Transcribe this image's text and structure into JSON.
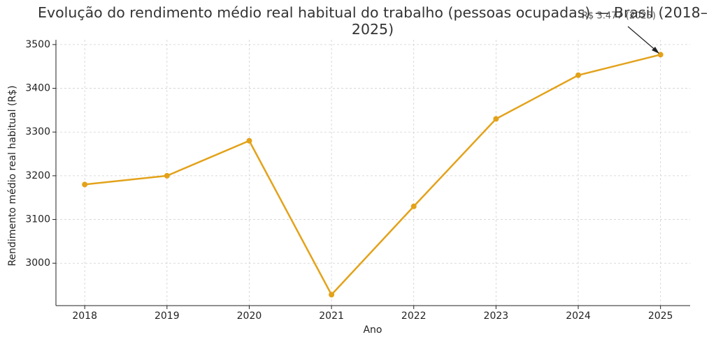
{
  "chart_data": {
    "type": "line",
    "title": "Evolução do rendimento médio real habitual do trabalho (pessoas ocupadas) — Brasil (2018–2025)",
    "x_label": "Ano",
    "y_label": "Rendimento médio real habitual (R$)",
    "x": [
      2018,
      2019,
      2020,
      2021,
      2022,
      2023,
      2024,
      2025
    ],
    "series": [
      {
        "name": "Rendimento médio real habitual",
        "color": "#e3a21a",
        "values": [
          3180,
          3200,
          3280,
          2928,
          3130,
          3330,
          3430,
          3477
        ]
      }
    ],
    "xlim": [
      2017.65,
      2025.36
    ],
    "xticks": [
      2018,
      2019,
      2020,
      2021,
      2022,
      2023,
      2024,
      2025
    ],
    "ylim": [
      2903,
      3511
    ],
    "yticks": [
      3000,
      3100,
      3200,
      3300,
      3400,
      3500
    ],
    "grid": true,
    "annotation": "R$ 3.477 (2025)"
  }
}
